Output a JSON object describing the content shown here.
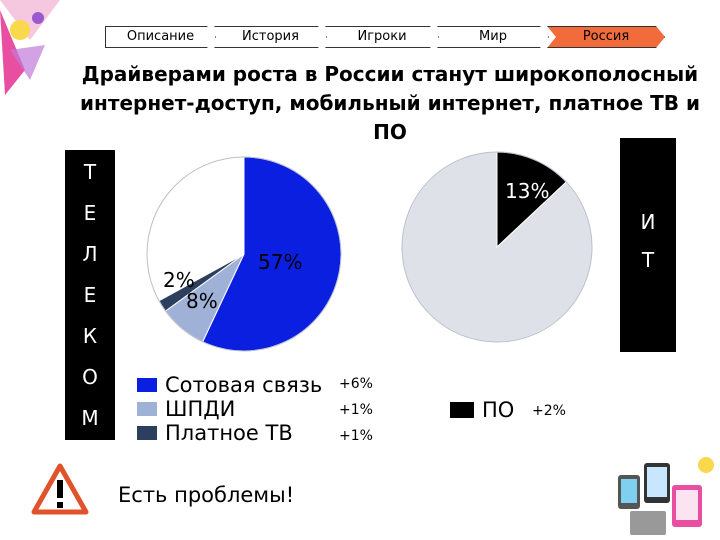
{
  "nav": {
    "tabs": [
      {
        "label": "Описание",
        "active": false
      },
      {
        "label": "История",
        "active": false
      },
      {
        "label": "Игроки",
        "active": false
      },
      {
        "label": "Мир",
        "active": false
      },
      {
        "label": "Россия",
        "active": true
      }
    ]
  },
  "slide": {
    "title": "Драйверами роста в России станут широкополосный интернет-доступ, мобильный интернет, платное ТВ и ПО",
    "left_bar_letters": [
      "Т",
      "Е",
      "Л",
      "Е",
      "К",
      "О",
      "М"
    ],
    "right_bar_letters": [
      "И",
      "Т"
    ],
    "warning_text": "Есть проблемы!"
  },
  "colors": {
    "mobile": "#0a1fe0",
    "broadband": "#9fb1d6",
    "paytv": "#2d3f5e",
    "software": "#000000",
    "rest": "#ffffff",
    "it_rest": "#dfe1e9",
    "active_tab": "#f26b3a"
  },
  "chart_data": [
    {
      "type": "pie",
      "slices": [
        {
          "label": "Сотовая связь",
          "value": 57,
          "value_label": "57%",
          "change": "+6%",
          "color": "#0a1fe0"
        },
        {
          "label": "ШПДИ",
          "value": 8,
          "value_label": "8%",
          "change": "+1%",
          "color": "#9fb1d6"
        },
        {
          "label": "Платное ТВ",
          "value": 2,
          "value_label": "2%",
          "change": "+1%",
          "color": "#2d3f5e"
        },
        {
          "label": "",
          "value": 33,
          "value_label": "",
          "change": "",
          "color": "#ffffff"
        }
      ],
      "legend_position": "bottom"
    },
    {
      "type": "pie",
      "slices": [
        {
          "label": "ПО",
          "value": 13,
          "value_label": "13%",
          "change": "+2%",
          "color": "#000000"
        },
        {
          "label": "",
          "value": 87,
          "value_label": "",
          "change": "",
          "color": "#dfe1e9"
        }
      ],
      "legend_position": "bottom"
    }
  ]
}
